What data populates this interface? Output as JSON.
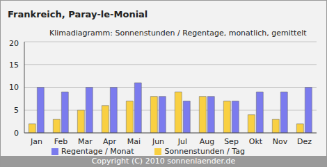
{
  "chart_data": {
    "type": "bar",
    "title": "Frankreich, Paray-le-Monial",
    "subtitle": "Klimadiagramm: Sonnenstunden / Regentage, monatlich, gemittelt",
    "annotations": [
      "Copyright (C) 2010 sonnenlaender.de"
    ],
    "categories": [
      "Jan",
      "Feb",
      "Mar",
      "Apr",
      "Mai",
      "Jun",
      "Jul",
      "Aug",
      "Sep",
      "Okt",
      "Nov",
      "Dez"
    ],
    "series": [
      {
        "name": "Sonnenstunden / Tag",
        "color": "#f9d042",
        "values": [
          2,
          3,
          5,
          6,
          7,
          8,
          9,
          8,
          7,
          4,
          3,
          2
        ]
      },
      {
        "name": "Regentage / Monat",
        "color": "#7b7bee",
        "values": [
          10,
          9,
          10,
          10,
          11,
          8,
          7,
          8,
          7,
          9,
          9,
          10
        ]
      }
    ],
    "ylim": [
      0,
      20
    ],
    "yticks": [
      0,
      5,
      10,
      15,
      20
    ],
    "grid": true,
    "legend": "bottom"
  }
}
